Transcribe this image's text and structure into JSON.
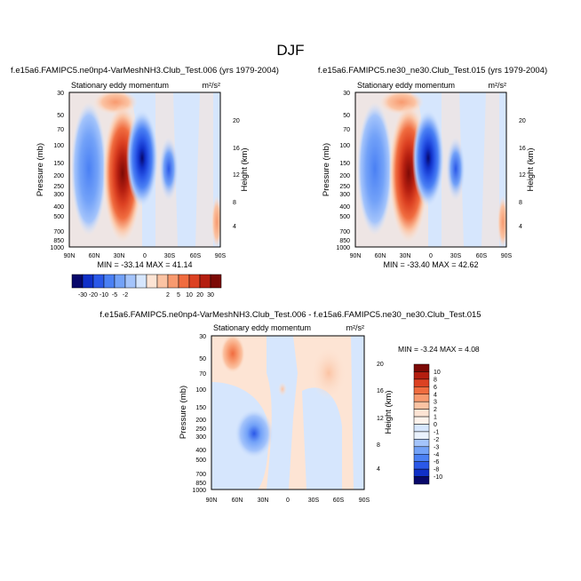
{
  "figure_title": "DJF",
  "colors": {
    "neg": [
      "#08086a",
      "#1030c8",
      "#2a58e8",
      "#4a80f4",
      "#73a2f8",
      "#a4c4fb",
      "#d6e6fd"
    ],
    "pos": [
      "#fde4d4",
      "#fbc3a3",
      "#f89a6f",
      "#f06c3f",
      "#dc4122",
      "#b41e10",
      "#7c0a06"
    ]
  },
  "chart_data": [
    {
      "type": "contour",
      "title": "f.e15a6.FAMIPC5.ne0np4-VarMeshNH3.Club_Test.006 (yrs 1979-2004)",
      "subtitle": "Stationary eddy momentum",
      "units": "m²/s²",
      "ylabel": "Pressure (mb)",
      "y2label": "Height (km)",
      "x_ticks": [
        "90N",
        "60N",
        "30N",
        "0",
        "30S",
        "60S",
        "90S"
      ],
      "y_ticks": [
        "30",
        "50",
        "70",
        "100",
        "150",
        "200",
        "250",
        "300",
        "400",
        "500",
        "700",
        "850",
        "1000"
      ],
      "y2_ticks": [
        "20",
        "16",
        "12",
        "8",
        "4"
      ],
      "min": -33.14,
      "max": 41.14,
      "stats": "MIN = -33.14  MAX = 41.14"
    },
    {
      "type": "contour",
      "title": "f.e15a6.FAMIPC5.ne30_ne30.Club_Test.015 (yrs 1979-2004)",
      "subtitle": "Stationary eddy momentum",
      "units": "m²/s²",
      "ylabel": "Pressure (mb)",
      "y2label": "Height (km)",
      "x_ticks": [
        "90N",
        "60N",
        "30N",
        "0",
        "30S",
        "60S",
        "90S"
      ],
      "y_ticks": [
        "30",
        "50",
        "70",
        "100",
        "150",
        "200",
        "250",
        "300",
        "400",
        "500",
        "700",
        "850",
        "1000"
      ],
      "y2_ticks": [
        "20",
        "16",
        "12",
        "8",
        "4"
      ],
      "min": -33.4,
      "max": 42.62,
      "stats": "MIN = -33.40  MAX = 42.62"
    },
    {
      "type": "contour",
      "title": "f.e15a6.FAMIPC5.ne0np4-VarMeshNH3.Club_Test.006 - f.e15a6.FAMIPC5.ne30_ne30.Club_Test.015",
      "subtitle": "Stationary eddy momentum",
      "units": "m²/s²",
      "ylabel": "Pressure (mb)",
      "y2label": "Height (km)",
      "x_ticks": [
        "90N",
        "60N",
        "30N",
        "0",
        "30S",
        "60S",
        "90S"
      ],
      "y_ticks": [
        "30",
        "50",
        "70",
        "100",
        "150",
        "200",
        "250",
        "300",
        "400",
        "500",
        "700",
        "850",
        "1000"
      ],
      "y2_ticks": [
        "20",
        "16",
        "12",
        "8",
        "4"
      ],
      "min": -3.24,
      "max": 4.08,
      "stats": "MIN = -3.24  MAX = 4.08"
    }
  ],
  "colorbar_top": {
    "labels": [
      "-30",
      "-20",
      "-10",
      "-5",
      "-2",
      "2",
      "5",
      "10",
      "20",
      "30"
    ]
  },
  "colorbar_diff": {
    "labels": [
      "10",
      "8",
      "6",
      "4",
      "3",
      "2",
      "1",
      "0",
      "-1",
      "-2",
      "-3",
      "-4",
      "-6",
      "-8",
      "-10"
    ]
  }
}
